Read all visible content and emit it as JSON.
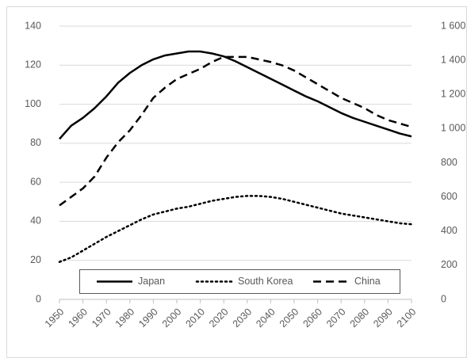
{
  "chart_data": {
    "type": "line",
    "x": [
      1950,
      1955,
      1960,
      1965,
      1970,
      1975,
      1980,
      1985,
      1990,
      1995,
      2000,
      2005,
      2010,
      2015,
      2020,
      2025,
      2030,
      2035,
      2040,
      2045,
      2050,
      2055,
      2060,
      2065,
      2070,
      2075,
      2080,
      2085,
      2090,
      2095,
      2100
    ],
    "xlim": [
      1950,
      2100
    ],
    "xticks": [
      1950,
      1960,
      1970,
      1980,
      1990,
      2000,
      2010,
      2020,
      2030,
      2040,
      2050,
      2060,
      2070,
      2080,
      2090,
      2100
    ],
    "ylim": [
      0,
      140
    ],
    "yticks": [
      0,
      20,
      40,
      60,
      80,
      100,
      120,
      140
    ],
    "y2lim": [
      0,
      1600
    ],
    "y2ticks": [
      0,
      200,
      400,
      600,
      800,
      {
        "value": 1000,
        "label": "1 000"
      },
      {
        "value": 1200,
        "label": "1 200"
      },
      {
        "value": 1400,
        "label": "1 400"
      },
      {
        "value": 1600,
        "label": "1 600"
      }
    ],
    "grid": true,
    "legend": "bottom",
    "series": [
      {
        "name": "Japan",
        "color": "#000000",
        "dash": "solid",
        "values": [
          82.2,
          89,
          93,
          98,
          104,
          111,
          116,
          120,
          123,
          125,
          126,
          127,
          127,
          126,
          124.5,
          122,
          119,
          116,
          113,
          110,
          107,
          104,
          101.5,
          98.5,
          95.5,
          93,
          91,
          89,
          87,
          85,
          83.5
        ]
      },
      {
        "name": "South Korea",
        "color": "#000000",
        "dash": "dotted",
        "values": [
          19.2,
          21.5,
          25,
          28.5,
          32,
          35,
          38,
          41,
          43.5,
          45,
          46.5,
          47.5,
          49,
          50.5,
          51.5,
          52.5,
          53,
          53,
          52.5,
          51.5,
          50,
          48.5,
          47,
          45.5,
          44,
          43,
          42,
          41,
          40,
          39,
          38.5
        ]
      },
      {
        "name": "China",
        "color": "#000000",
        "dash": "dashed",
        "axis": "y2",
        "values": [
          550,
          600,
          650,
          720,
          830,
          920,
          990,
          1080,
          1180,
          1240,
          1290,
          1320,
          1350,
          1390,
          1420,
          1420,
          1420,
          1405,
          1390,
          1370,
          1340,
          1300,
          1260,
          1220,
          1180,
          1150,
          1120,
          1080,
          1050,
          1030,
          1010
        ]
      }
    ]
  }
}
